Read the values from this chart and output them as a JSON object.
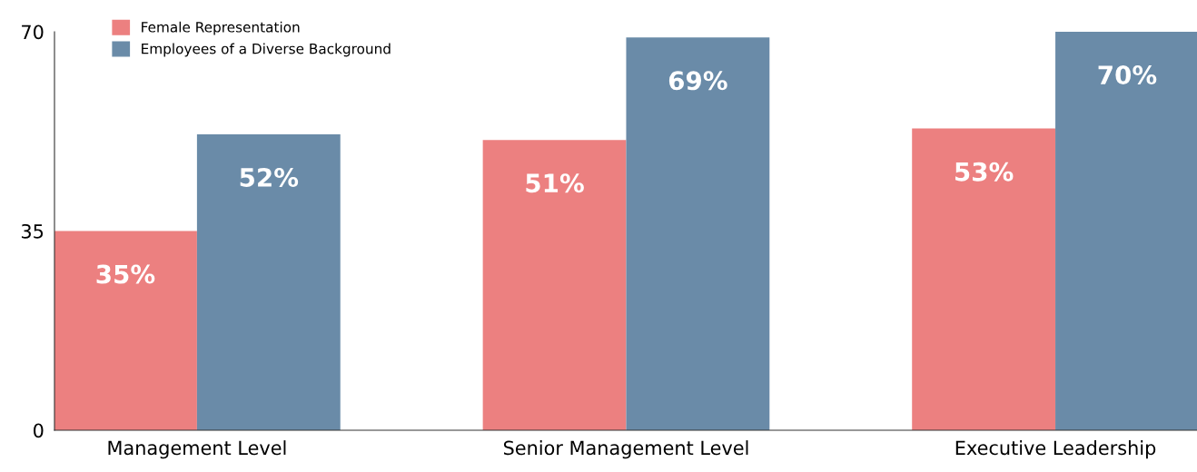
{
  "chart_data": {
    "type": "bar",
    "categories": [
      "Management Level",
      "Senior Management Level",
      "Executive Leadership"
    ],
    "series": [
      {
        "name": "Female Representation",
        "color": "#ec8080",
        "values": [
          35,
          51,
          53
        ],
        "value_labels": [
          "35%",
          "51%",
          "53%"
        ]
      },
      {
        "name": "Employees of a Diverse Background",
        "color": "#6a8ba8",
        "values": [
          52,
          69,
          70
        ],
        "value_labels": [
          "52%",
          "69%",
          "70%"
        ]
      }
    ],
    "ylim": [
      0,
      70
    ],
    "yticks": [
      0,
      35,
      70
    ],
    "grid": false,
    "legend": "top left"
  }
}
